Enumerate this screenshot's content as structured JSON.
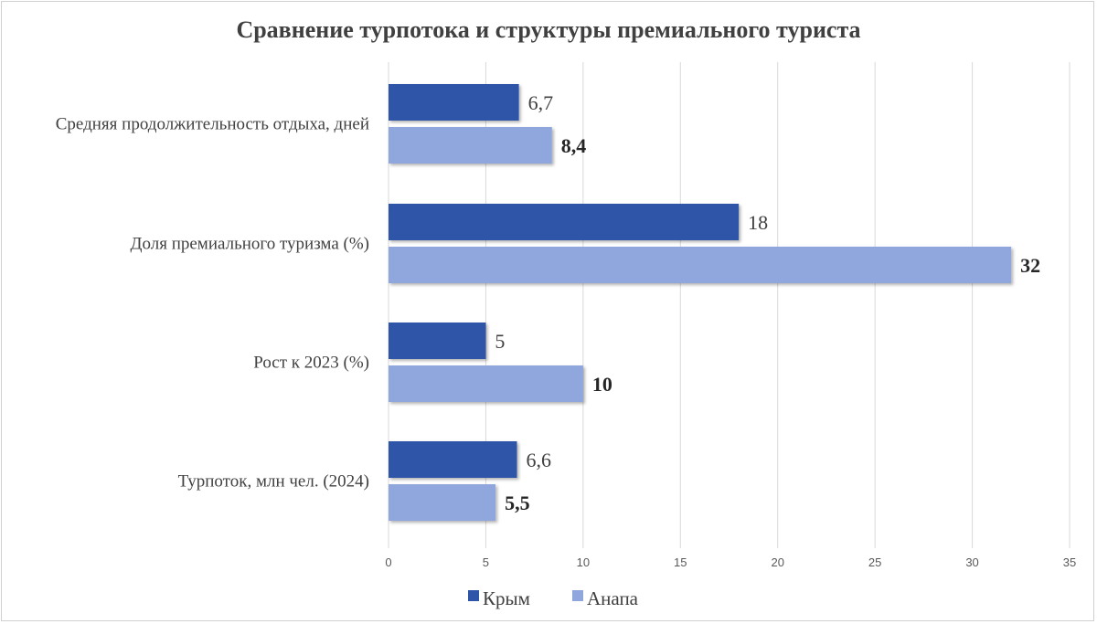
{
  "chart_data": {
    "type": "bar",
    "orientation": "horizontal",
    "title": "Сравнение турпотока и структуры премиального  туриста",
    "categories": [
      "Средняя продолжительность отдыха, дней",
      "Доля премиального туризма (%)",
      "Рост к 2023 (%)",
      "Турпоток, млн чел. (2024)"
    ],
    "series": [
      {
        "name": "Крым",
        "values": [
          6.7,
          18,
          5,
          6.6
        ],
        "labels": [
          "6,7",
          "18",
          "5",
          "6,6"
        ],
        "color": "#2e55a8"
      },
      {
        "name": "Анапа",
        "values": [
          8.4,
          32,
          10,
          5.5
        ],
        "labels": [
          "8,4",
          "32",
          "10",
          "5,5"
        ],
        "color": "#8fa7dc"
      }
    ],
    "xlim": [
      0,
      35
    ],
    "xticks": [
      "0",
      "5",
      "10",
      "15",
      "20",
      "25",
      "30",
      "35"
    ],
    "grid": true,
    "legend_position": "bottom"
  }
}
